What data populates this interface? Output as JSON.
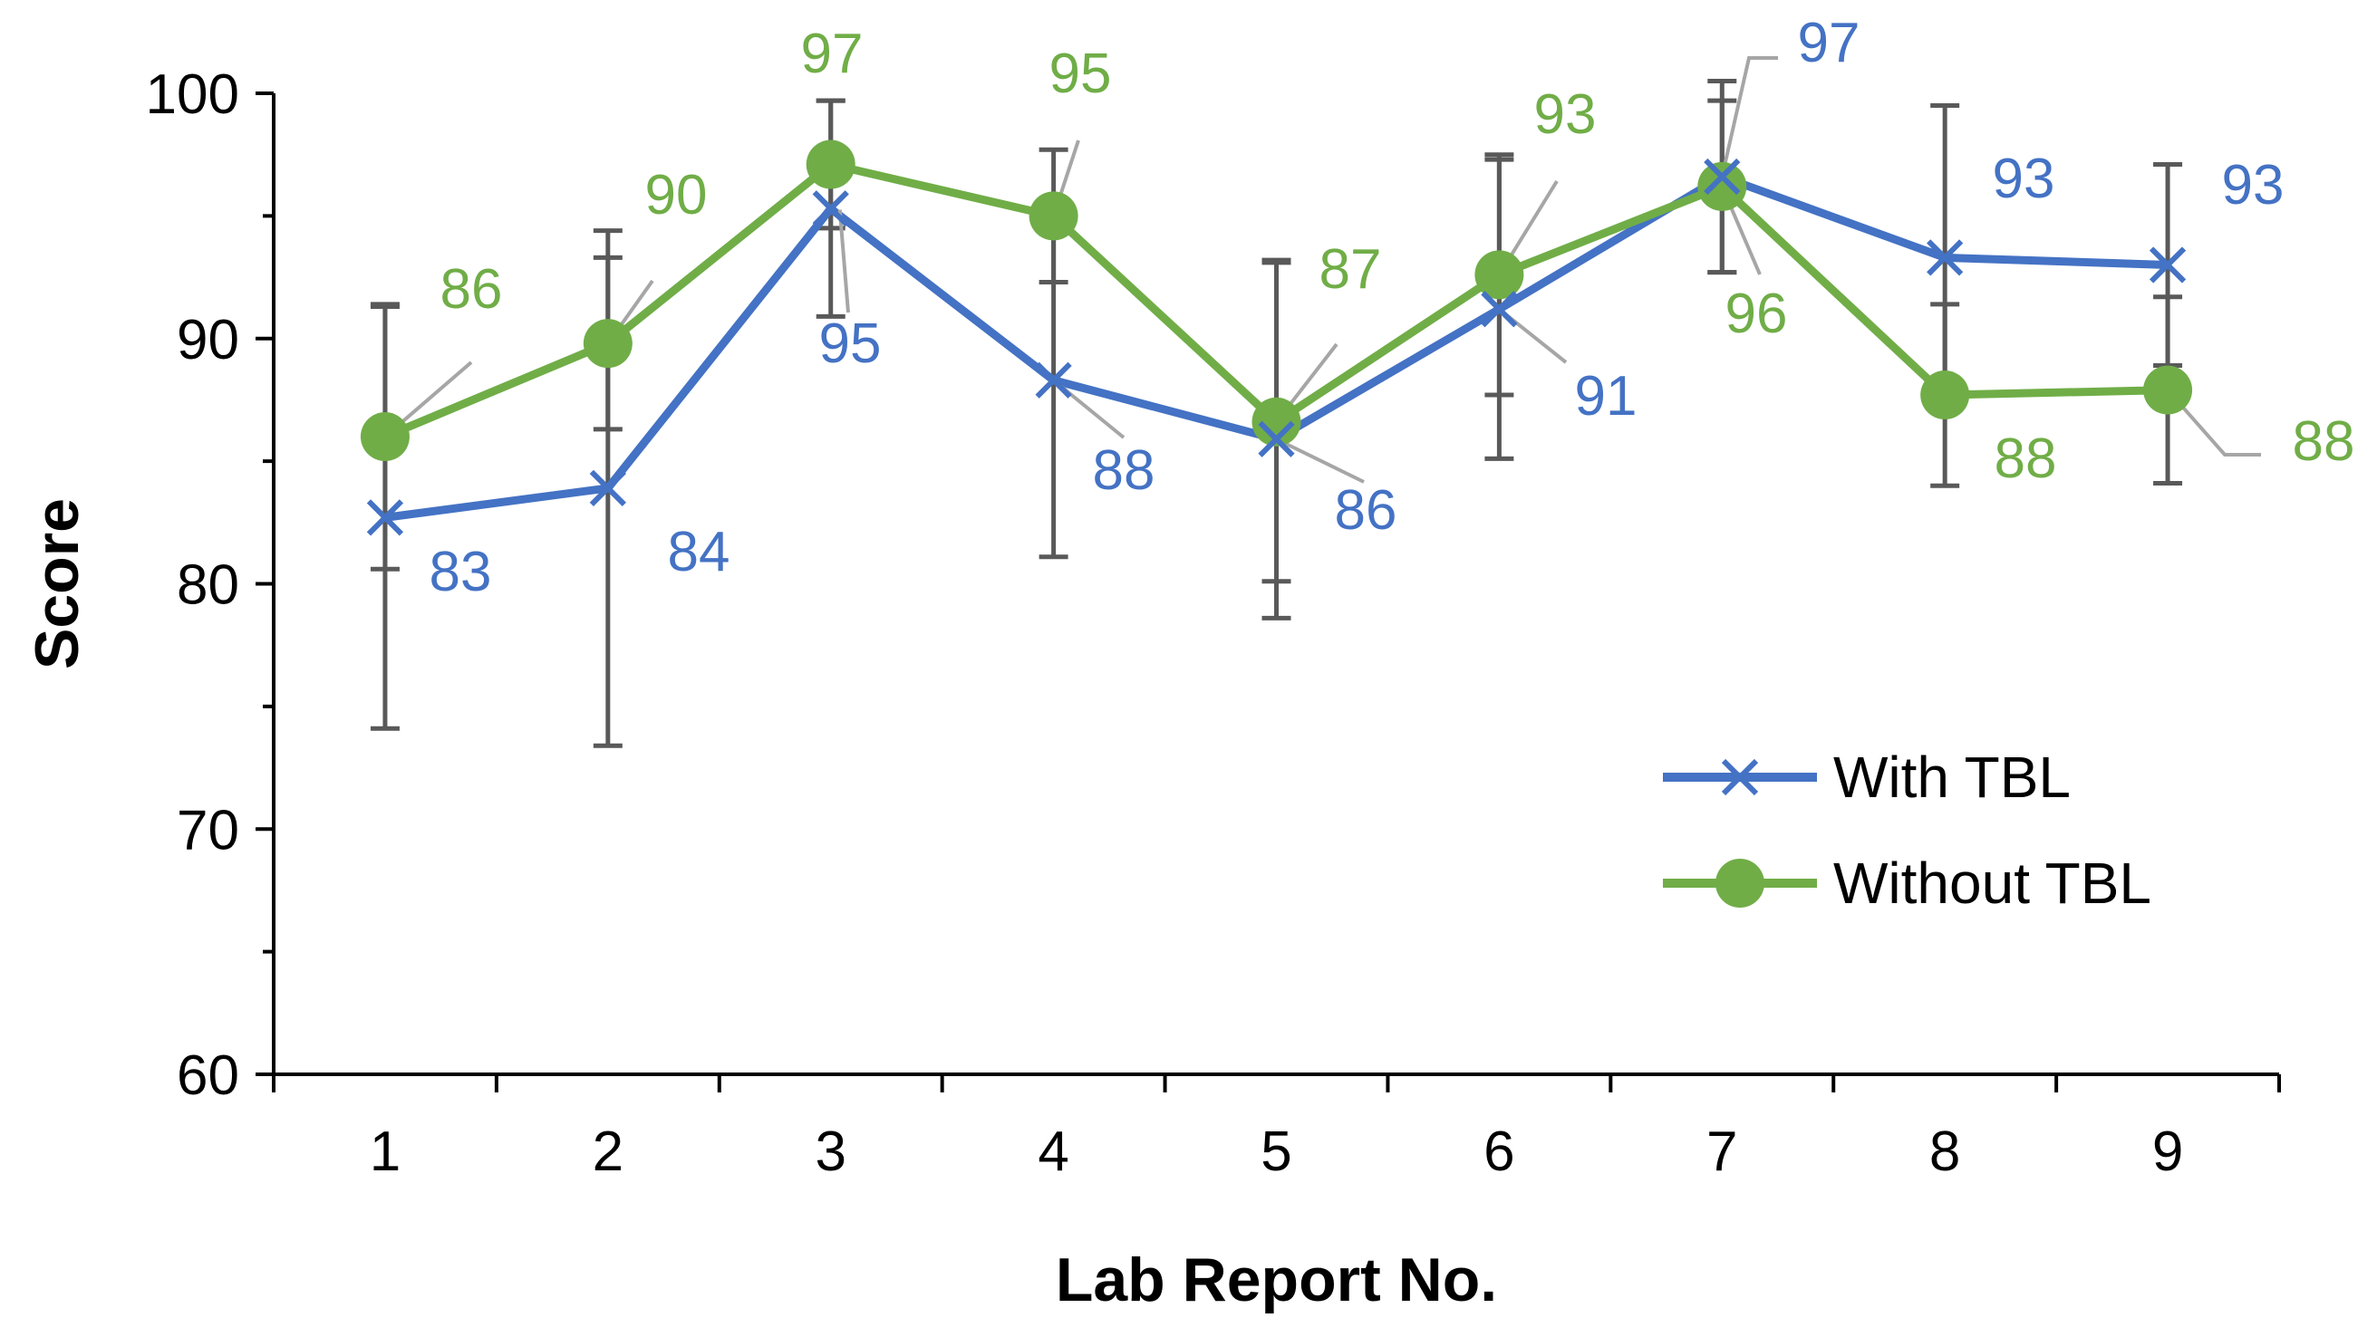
{
  "chart_data": {
    "type": "line",
    "title": "",
    "xlabel": "Lab Report No.",
    "ylabel": "Score",
    "categories": [
      "1",
      "2",
      "3",
      "4",
      "5",
      "6",
      "7",
      "8",
      "9"
    ],
    "ylim": [
      60,
      100
    ],
    "yticks": [
      60,
      70,
      80,
      90,
      100
    ],
    "grid": false,
    "legend_position": "bottom-right",
    "series": [
      {
        "name": "With TBL",
        "color": "#4472C4",
        "marker": "x",
        "values": [
          82.7,
          83.9,
          95.3,
          88.3,
          85.9,
          91.2,
          96.6,
          93.3,
          93.0
        ],
        "labels": [
          "83",
          "84",
          "95",
          "88",
          "86",
          "91",
          "97",
          "93",
          "93"
        ],
        "error": [
          8.6,
          10.5,
          4.4,
          7.2,
          7.3,
          6.1,
          3.9,
          6.2,
          4.1
        ]
      },
      {
        "name": "Without TBL",
        "color": "#70AD47",
        "marker": "circle",
        "values": [
          86.0,
          89.8,
          97.1,
          95.0,
          86.6,
          92.6,
          96.2,
          87.7,
          87.9
        ],
        "labels": [
          "86",
          "90",
          "97",
          "95",
          "87",
          "93",
          "96",
          "88",
          "88"
        ],
        "error": [
          5.4,
          3.5,
          2.6,
          2.7,
          6.5,
          4.9,
          3.5,
          3.7,
          3.8
        ]
      }
    ],
    "error_bar_color": "#595959",
    "leader_line_color": "#A6A6A6"
  }
}
